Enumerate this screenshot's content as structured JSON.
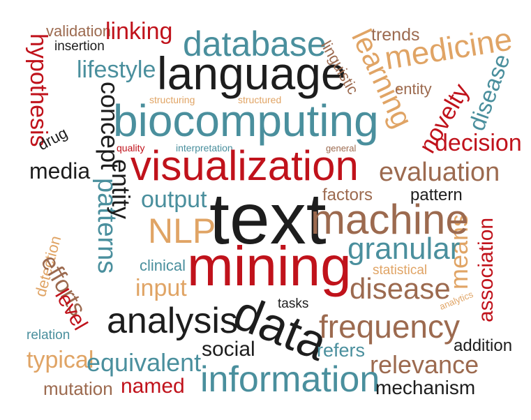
{
  "word_cloud": {
    "words": {
      "validation": "validation",
      "linking": "linking",
      "insertion": "insertion",
      "hypothesis": "hypothesis",
      "database": "database",
      "language": "language",
      "lifestyle": "lifestyle",
      "trends": "trends",
      "medicine": "medicine",
      "learning": "learning",
      "linguistic": "linguistic",
      "disease_top": "disease",
      "entity_top": "entity",
      "novelty": "novelty",
      "concept": "concept",
      "structuring": "structuring",
      "structured": "structured",
      "biocomputing": "biocomputing",
      "drug": "drug",
      "quality": "quality",
      "interpretation": "interpretation",
      "general": "general",
      "decision": "decision",
      "media": "media",
      "visualization": "visualization",
      "evaluation": "evaluation",
      "patterns": "patterns",
      "entity_vertical": "entity",
      "output": "output",
      "factors": "factors",
      "pattern": "pattern",
      "text": "text",
      "means": "means",
      "nlp": "NLP",
      "machine": "machine",
      "association": "association",
      "detection": "detection",
      "granular": "granular",
      "statistical": "statistical",
      "clinical": "clinical",
      "efforts": "efforts",
      "mining": "mining",
      "input": "input",
      "disease_mid": "disease",
      "analytics": "analytics",
      "level": "level",
      "tasks": "tasks",
      "analysis": "analysis",
      "data": "data",
      "frequency": "frequency",
      "relation": "relation",
      "addition": "addition",
      "typical": "typical",
      "social": "social",
      "refers": "refers",
      "equivalent": "equivalent",
      "relevance": "relevance",
      "information": "information",
      "mutation": "mutation",
      "named": "named",
      "mechanism": "mechanism"
    },
    "colors": {
      "red": "#c0121b",
      "black": "#1d1d1d",
      "teal": "#4a8f9d",
      "orange": "#e0a465",
      "brown": "#9c6a4f"
    }
  }
}
